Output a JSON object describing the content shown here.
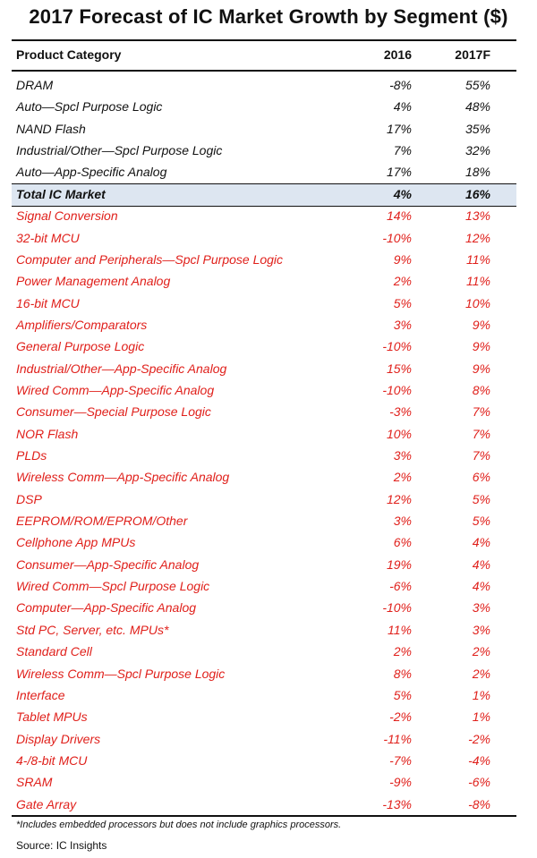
{
  "chart_data": {
    "type": "table",
    "title": "2017 Forecast of IC Market Growth by Segment ($)",
    "columns": [
      "Product Category",
      "2016",
      "2017F"
    ],
    "rows": [
      {
        "name": "DRAM",
        "v2016": "-8%",
        "v2017": "55%",
        "color": "black"
      },
      {
        "name": "Auto—Spcl Purpose Logic",
        "v2016": "4%",
        "v2017": "48%",
        "color": "black"
      },
      {
        "name": "NAND Flash",
        "v2016": "17%",
        "v2017": "35%",
        "color": "black"
      },
      {
        "name": "Industrial/Other—Spcl Purpose Logic",
        "v2016": "7%",
        "v2017": "32%",
        "color": "black"
      },
      {
        "name": "Auto—App-Specific Analog",
        "v2016": "17%",
        "v2017": "18%",
        "color": "black"
      },
      {
        "name": "Total IC Market",
        "v2016": "4%",
        "v2017": "16%",
        "color": "total"
      },
      {
        "name": "Signal Conversion",
        "v2016": "14%",
        "v2017": "13%",
        "color": "red"
      },
      {
        "name": "32-bit MCU",
        "v2016": "-10%",
        "v2017": "12%",
        "color": "red"
      },
      {
        "name": "Computer and Peripherals—Spcl Purpose Logic",
        "v2016": "9%",
        "v2017": "11%",
        "color": "red"
      },
      {
        "name": "Power Management Analog",
        "v2016": "2%",
        "v2017": "11%",
        "color": "red"
      },
      {
        "name": "16-bit MCU",
        "v2016": "5%",
        "v2017": "10%",
        "color": "red"
      },
      {
        "name": "Amplifiers/Comparators",
        "v2016": "3%",
        "v2017": "9%",
        "color": "red"
      },
      {
        "name": "General Purpose Logic",
        "v2016": "-10%",
        "v2017": "9%",
        "color": "red"
      },
      {
        "name": "Industrial/Other—App-Specific Analog",
        "v2016": "15%",
        "v2017": "9%",
        "color": "red"
      },
      {
        "name": "Wired Comm—App-Specific Analog",
        "v2016": "-10%",
        "v2017": "8%",
        "color": "red"
      },
      {
        "name": "Consumer—Special Purpose Logic",
        "v2016": "-3%",
        "v2017": "7%",
        "color": "red"
      },
      {
        "name": "NOR Flash",
        "v2016": "10%",
        "v2017": "7%",
        "color": "red"
      },
      {
        "name": "PLDs",
        "v2016": "3%",
        "v2017": "7%",
        "color": "red"
      },
      {
        "name": "Wireless Comm—App-Specific Analog",
        "v2016": "2%",
        "v2017": "6%",
        "color": "red"
      },
      {
        "name": "DSP",
        "v2016": "12%",
        "v2017": "5%",
        "color": "red"
      },
      {
        "name": "EEPROM/ROM/EPROM/Other",
        "v2016": "3%",
        "v2017": "5%",
        "color": "red"
      },
      {
        "name": "Cellphone App MPUs",
        "v2016": "6%",
        "v2017": "4%",
        "color": "red"
      },
      {
        "name": "Consumer—App-Specific Analog",
        "v2016": "19%",
        "v2017": "4%",
        "color": "red"
      },
      {
        "name": "Wired Comm—Spcl Purpose Logic",
        "v2016": "-6%",
        "v2017": "4%",
        "color": "red"
      },
      {
        "name": "Computer—App-Specific Analog",
        "v2016": "-10%",
        "v2017": "3%",
        "color": "red"
      },
      {
        "name": "Std PC, Server, etc. MPUs*",
        "v2016": "11%",
        "v2017": "3%",
        "color": "red"
      },
      {
        "name": "Standard Cell",
        "v2016": "2%",
        "v2017": "2%",
        "color": "red"
      },
      {
        "name": "Wireless Comm—Spcl Purpose Logic",
        "v2016": "8%",
        "v2017": "2%",
        "color": "red"
      },
      {
        "name": "Interface",
        "v2016": "5%",
        "v2017": "1%",
        "color": "red"
      },
      {
        "name": "Tablet MPUs",
        "v2016": "-2%",
        "v2017": "1%",
        "color": "red"
      },
      {
        "name": "Display Drivers",
        "v2016": "-11%",
        "v2017": "-2%",
        "color": "red"
      },
      {
        "name": "4-/8-bit MCU",
        "v2016": "-7%",
        "v2017": "-4%",
        "color": "red"
      },
      {
        "name": "SRAM",
        "v2016": "-9%",
        "v2017": "-6%",
        "color": "red"
      },
      {
        "name": "Gate Array",
        "v2016": "-13%",
        "v2017": "-8%",
        "color": "red"
      }
    ],
    "footnote": "*Includes embedded processors but does not include graphics processors.",
    "source": "Source:  IC Insights"
  },
  "colors": {
    "text": "#111111",
    "red": "#e0201b",
    "total_highlight": "#dde6f1"
  }
}
